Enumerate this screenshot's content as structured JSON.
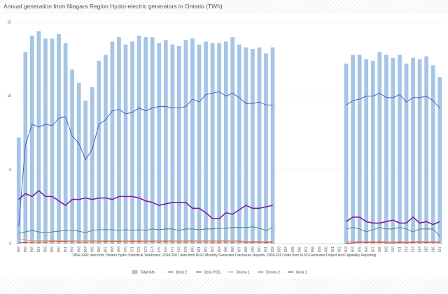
{
  "chart_data": {
    "type": "bar",
    "title": "Annual generation from Niagara Region Hydro-electric generators in Ontario (TWh)",
    "caption": "1954-1992 data from Ontario Hydro Statistical Yearbooks; 2003-2007 data from IESO Monthly Generator Disclosure Reports, 2008-2017 data from IESO Generator Output and Capability Reporting",
    "years": [
      "1954",
      "1955",
      "1956",
      "1957",
      "1958",
      "1959",
      "1960",
      "1961",
      "1962",
      "1963",
      "1964",
      "1965",
      "1966",
      "1967",
      "1968",
      "1969",
      "1970",
      "1971",
      "1972",
      "1973",
      "1974",
      "1975",
      "1976",
      "1977",
      "1978",
      "1979",
      "1980",
      "1981",
      "1982",
      "1983",
      "1984",
      "1985",
      "1986",
      "1987",
      "1988",
      "1989",
      "1990",
      "1991",
      "1992",
      "1993",
      "1994",
      "1995",
      "1996",
      "1997",
      "1998",
      "1999",
      "2000",
      "2001",
      "2002",
      "2003",
      "2004",
      "2005",
      "2006",
      "2007",
      "2008",
      "2009",
      "2010",
      "2011",
      "2012",
      "2013",
      "2014",
      "2015",
      "2016",
      "2017"
    ],
    "ylim": [
      0,
      15
    ],
    "yticks": [
      0,
      5,
      10,
      15
    ],
    "bar_series": {
      "name": "Total Inth",
      "color": "#a6c5e6",
      "values": [
        7.2,
        13.0,
        14.1,
        14.4,
        13.9,
        13.9,
        14.2,
        13.6,
        11.8,
        10.9,
        9.7,
        10.6,
        12.4,
        12.8,
        13.7,
        14.0,
        13.5,
        13.7,
        14.1,
        14.0,
        14.0,
        13.6,
        13.8,
        13.5,
        13.4,
        13.8,
        13.9,
        13.5,
        13.7,
        13.6,
        13.6,
        13.7,
        14.0,
        13.5,
        13.3,
        13.2,
        13.3,
        12.9,
        13.3,
        null,
        null,
        null,
        null,
        null,
        null,
        null,
        null,
        null,
        null,
        12.2,
        12.8,
        12.8,
        12.5,
        12.4,
        13.0,
        12.8,
        12.6,
        12.8,
        12.2,
        12.6,
        12.5,
        12.7,
        12.1,
        11.3
      ]
    },
    "line_series": [
      {
        "name": "Beck 2",
        "color": "#3355bb",
        "values": [
          1.2,
          6.7,
          8.1,
          7.9,
          8.1,
          8.0,
          8.5,
          8.6,
          7.3,
          6.8,
          5.7,
          6.4,
          8.1,
          8.4,
          9.0,
          9.1,
          8.8,
          8.9,
          9.2,
          9.0,
          9.2,
          9.3,
          9.3,
          9.2,
          9.2,
          9.3,
          9.8,
          9.6,
          10.1,
          10.2,
          10.3,
          10.0,
          10.2,
          9.9,
          9.5,
          9.5,
          9.6,
          9.4,
          9.4,
          null,
          null,
          null,
          null,
          null,
          null,
          null,
          null,
          null,
          null,
          9.4,
          9.7,
          9.8,
          10.0,
          10.0,
          10.2,
          9.9,
          9.9,
          10.1,
          9.6,
          9.9,
          9.9,
          10.0,
          9.7,
          9.2
        ]
      },
      {
        "name": "Beck PGS",
        "color": "#cc2222",
        "values": [
          0.05,
          0.08,
          0.1,
          0.1,
          0.1,
          0.15,
          0.15,
          0.15,
          0.12,
          0.1,
          0.1,
          0.12,
          0.12,
          0.15,
          0.15,
          0.15,
          0.12,
          0.15,
          0.15,
          0.12,
          0.15,
          0.1,
          0.15,
          0.12,
          0.1,
          0.12,
          0.12,
          0.1,
          0.12,
          0.1,
          0.1,
          0.12,
          0.1,
          0.12,
          0.1,
          0.1,
          0.1,
          0.08,
          0.1,
          null,
          null,
          null,
          null,
          null,
          null,
          null,
          null,
          null,
          null,
          0.02,
          0.05,
          0.1,
          0.08,
          0.08,
          0.1,
          0.05,
          0.05,
          0.08,
          0.05,
          0.08,
          0.1,
          0.08,
          0.1,
          0.08
        ]
      },
      {
        "name": "Decew 1",
        "color": "#f08b3a",
        "values": [
          0.3,
          0.25,
          0.2,
          0.2,
          0.2,
          0.2,
          0.2,
          0.2,
          0.2,
          0.2,
          0.2,
          0.2,
          0.2,
          0.2,
          0.2,
          0.2,
          0.2,
          0.2,
          0.2,
          0.2,
          0.2,
          0.2,
          0.2,
          0.2,
          0.2,
          0.2,
          0.2,
          0.2,
          0.2,
          0.2,
          0.2,
          0.2,
          0.2,
          0.2,
          0.15,
          0.15,
          0.15,
          0.15,
          0.15,
          null,
          null,
          null,
          null,
          null,
          null,
          null,
          null,
          null,
          null,
          0.15,
          0.15,
          0.15,
          0.15,
          0.15,
          0.15,
          0.15,
          0.15,
          0.15,
          0.15,
          0.15,
          0.15,
          0.15,
          0.15,
          0.15
        ]
      },
      {
        "name": "Decew 2",
        "color": "#2e8b57",
        "values": [
          0.7,
          0.8,
          0.9,
          0.8,
          0.75,
          0.8,
          0.85,
          0.9,
          0.9,
          0.85,
          0.75,
          0.9,
          0.95,
          0.95,
          0.95,
          0.9,
          0.95,
          0.9,
          0.95,
          0.9,
          1.0,
          0.95,
          1.0,
          1.0,
          0.9,
          1.0,
          1.0,
          0.95,
          1.0,
          1.0,
          1.05,
          1.05,
          1.1,
          1.1,
          1.1,
          1.15,
          1.05,
          0.9,
          1.1,
          null,
          null,
          null,
          null,
          null,
          null,
          null,
          null,
          null,
          null,
          1.0,
          1.1,
          1.0,
          0.8,
          0.95,
          1.1,
          1.0,
          1.0,
          1.1,
          1.0,
          0.8,
          1.0,
          1.0,
          1.0,
          0.5
        ]
      },
      {
        "name": "Beck 1",
        "color": "#7a1fa2",
        "values": [
          3.0,
          3.4,
          3.2,
          3.6,
          3.2,
          3.2,
          2.9,
          2.6,
          3.0,
          3.0,
          3.1,
          3.0,
          3.1,
          3.1,
          3.0,
          3.2,
          3.2,
          3.2,
          3.1,
          2.9,
          2.8,
          2.6,
          2.7,
          2.8,
          2.8,
          2.8,
          2.4,
          2.4,
          2.1,
          1.7,
          1.7,
          2.1,
          2.0,
          2.3,
          2.6,
          2.4,
          2.4,
          2.5,
          2.6,
          null,
          null,
          null,
          null,
          null,
          null,
          null,
          null,
          null,
          null,
          1.5,
          1.8,
          1.8,
          1.5,
          1.4,
          1.4,
          1.5,
          1.6,
          1.4,
          1.4,
          1.8,
          1.4,
          1.5,
          1.3,
          1.5
        ]
      }
    ],
    "legend_placement": "bottom",
    "grid": "horizontal"
  }
}
